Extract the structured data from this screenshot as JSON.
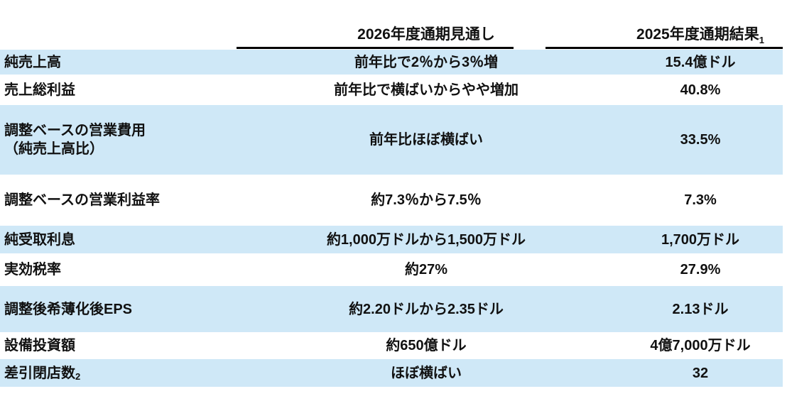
{
  "colors": {
    "row_band": "#cfe8f7",
    "text": "#111111",
    "header_rule": "#000000",
    "background": "#ffffff"
  },
  "header": {
    "outlook_label": "2026年度通期見通し",
    "result_label": "2025年度通期結果",
    "result_label_subscript": "1"
  },
  "rows": [
    {
      "metric": "純売上高",
      "outlook": "前年比で2％から3％増",
      "result": "15.4億ドル"
    },
    {
      "metric": "売上総利益",
      "outlook": "前年比で横ばいからやや増加",
      "result": "40.8%"
    },
    {
      "metric": "調整ベースの営業費用",
      "metric_line2": "（純売上高比）",
      "outlook": "前年比ほぼ横ばい",
      "result": "33.5%"
    },
    {
      "metric": "調整ベースの営業利益率",
      "outlook": "約7.3％から7.5％",
      "result": "7.3%"
    },
    {
      "metric": "純受取利息",
      "outlook": "約1,000万ドルから1,500万ドル",
      "result": "1,700万ドル"
    },
    {
      "metric": "実効税率",
      "outlook": "約27%",
      "result": "27.9%"
    },
    {
      "metric": "調整後希薄化後EPS",
      "outlook": "約2.20ドルから2.35ドル",
      "result": "2.13ドル"
    },
    {
      "metric": "設備投資額",
      "outlook": "約650億ドル",
      "result": "4億7,000万ドル"
    },
    {
      "metric": "差引閉店数",
      "metric_subscript": "2",
      "outlook": "ほぼ横ばい",
      "result": "32"
    }
  ]
}
